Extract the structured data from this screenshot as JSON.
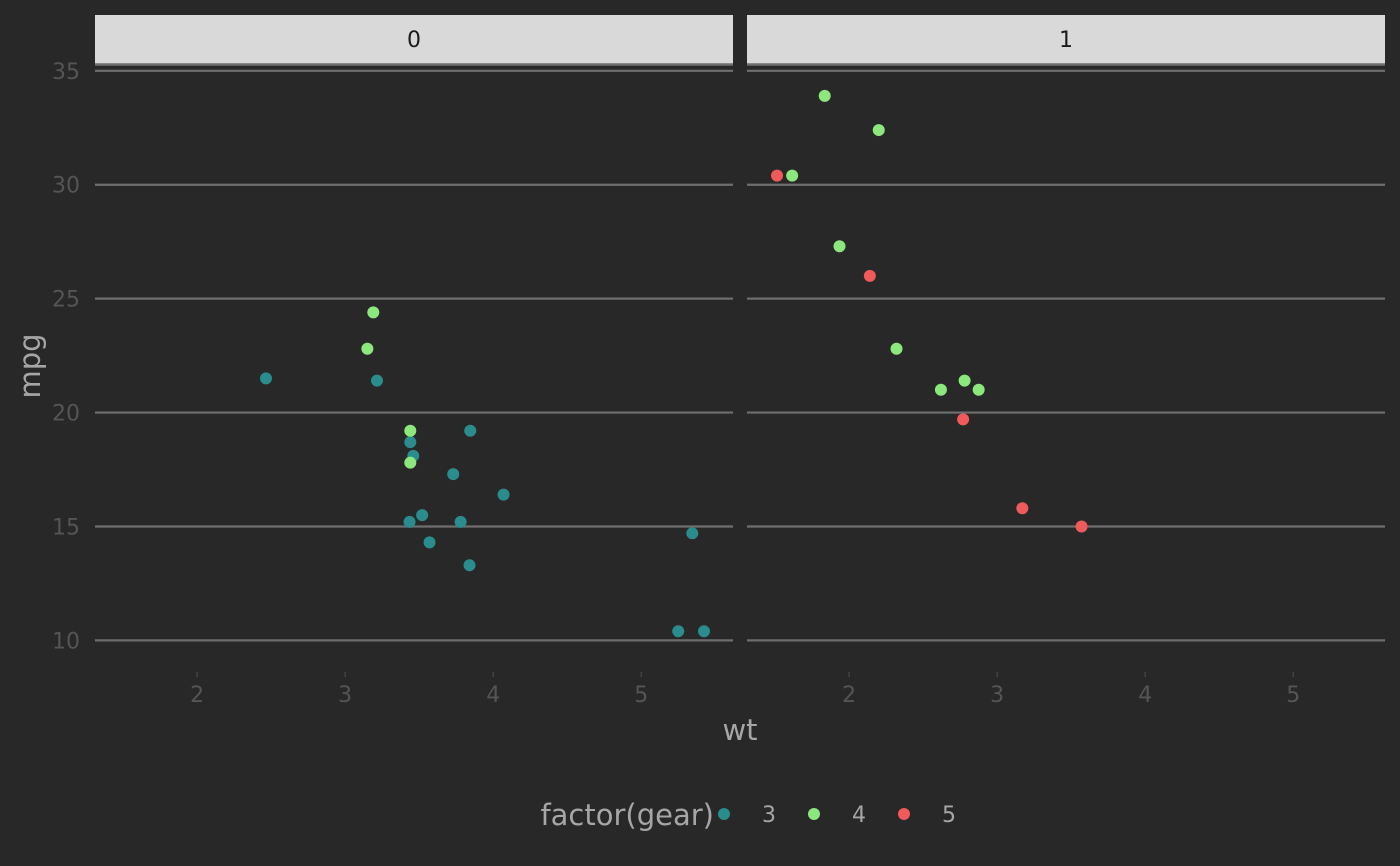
{
  "chart_data": {
    "type": "scatter",
    "title": "",
    "xlabel": "wt",
    "ylabel": "mpg",
    "xlim": [
      1.31,
      5.62
    ],
    "ylim": [
      8.7,
      35.3
    ],
    "x_ticks": [
      2,
      3,
      4,
      5
    ],
    "y_ticks": [
      10,
      15,
      20,
      25,
      30,
      35
    ],
    "grid": "horizontal major",
    "legend": {
      "title": "factor(gear)",
      "position": "bottom",
      "entries": [
        {
          "label": "3",
          "color": "#2a8c8c"
        },
        {
          "label": "4",
          "color": "#8ce87c"
        },
        {
          "label": "5",
          "color": "#f15a5a"
        }
      ]
    },
    "facets": [
      {
        "label": "0",
        "points": [
          {
            "x": 2.465,
            "y": 21.5,
            "gear": "3"
          },
          {
            "x": 3.215,
            "y": 21.4,
            "gear": "3"
          },
          {
            "x": 3.44,
            "y": 18.7,
            "gear": "3"
          },
          {
            "x": 3.46,
            "y": 18.1,
            "gear": "3"
          },
          {
            "x": 3.57,
            "y": 14.3,
            "gear": "3"
          },
          {
            "x": 4.07,
            "y": 16.4,
            "gear": "3"
          },
          {
            "x": 3.73,
            "y": 17.3,
            "gear": "3"
          },
          {
            "x": 3.78,
            "y": 15.2,
            "gear": "3"
          },
          {
            "x": 5.25,
            "y": 10.4,
            "gear": "3"
          },
          {
            "x": 5.424,
            "y": 10.4,
            "gear": "3"
          },
          {
            "x": 5.345,
            "y": 14.7,
            "gear": "3"
          },
          {
            "x": 3.52,
            "y": 15.5,
            "gear": "3"
          },
          {
            "x": 3.435,
            "y": 15.2,
            "gear": "3"
          },
          {
            "x": 3.84,
            "y": 13.3,
            "gear": "3"
          },
          {
            "x": 3.845,
            "y": 19.2,
            "gear": "3"
          },
          {
            "x": 3.19,
            "y": 24.4,
            "gear": "4"
          },
          {
            "x": 3.15,
            "y": 22.8,
            "gear": "4"
          },
          {
            "x": 3.44,
            "y": 19.2,
            "gear": "4"
          },
          {
            "x": 3.44,
            "y": 17.8,
            "gear": "4"
          }
        ]
      },
      {
        "label": "1",
        "points": [
          {
            "x": 2.62,
            "y": 21.0,
            "gear": "4"
          },
          {
            "x": 2.875,
            "y": 21.0,
            "gear": "4"
          },
          {
            "x": 2.32,
            "y": 22.8,
            "gear": "4"
          },
          {
            "x": 2.2,
            "y": 32.4,
            "gear": "4"
          },
          {
            "x": 1.615,
            "y": 30.4,
            "gear": "4"
          },
          {
            "x": 1.835,
            "y": 33.9,
            "gear": "4"
          },
          {
            "x": 1.935,
            "y": 27.3,
            "gear": "4"
          },
          {
            "x": 2.78,
            "y": 21.4,
            "gear": "4"
          },
          {
            "x": 2.14,
            "y": 26.0,
            "gear": "5"
          },
          {
            "x": 1.513,
            "y": 30.4,
            "gear": "5"
          },
          {
            "x": 3.17,
            "y": 15.8,
            "gear": "5"
          },
          {
            "x": 2.77,
            "y": 19.7,
            "gear": "5"
          },
          {
            "x": 3.57,
            "y": 15.0,
            "gear": "5"
          }
        ]
      }
    ]
  }
}
